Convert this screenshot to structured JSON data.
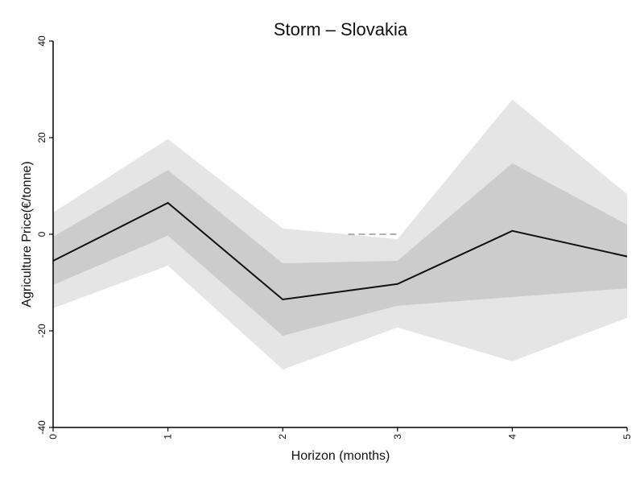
{
  "chart_data": {
    "type": "line",
    "title": "Storm – Slovakia",
    "xlabel": "Horizon (months)",
    "ylabel": "Agriculture Price(€/tonne)",
    "x": [
      0,
      1,
      2,
      3,
      4,
      5
    ],
    "xlim": [
      0,
      5
    ],
    "ylim": [
      -40,
      40
    ],
    "xticks": [
      "0",
      "1",
      "2",
      "3",
      "4",
      "5"
    ],
    "yticks": [
      {
        "value": -40,
        "label": "-40"
      },
      {
        "value": -20,
        "label": "-20"
      },
      {
        "value": 0,
        "label": "0"
      },
      {
        "value": 20,
        "label": "20"
      },
      {
        "value": 40,
        "label": "40"
      }
    ],
    "grid": false,
    "series": [
      {
        "values": [
          -5.5,
          6.5,
          -13.5,
          -10.3,
          0.7,
          -4.6
        ]
      }
    ],
    "bands": [
      {
        "lower": [
          -15.3,
          -6.5,
          -28.0,
          -19.3,
          -26.3,
          -17.3
        ],
        "upper": [
          4.5,
          19.7,
          1.2,
          -1.0,
          27.9,
          8.3
        ]
      },
      {
        "lower": [
          -10.5,
          -0.3,
          -21.0,
          -14.8,
          -13.0,
          -11.2
        ],
        "upper": [
          -0.5,
          13.3,
          -6.0,
          -5.5,
          14.7,
          2.0
        ]
      }
    ],
    "reference": {
      "value": 0,
      "x_from": 2.57,
      "x_to": 3.0
    },
    "colors": {
      "outer_band": "#e5e5e5",
      "inner_band": "#cccccc",
      "line": "#111111",
      "reference": "#999999"
    }
  }
}
